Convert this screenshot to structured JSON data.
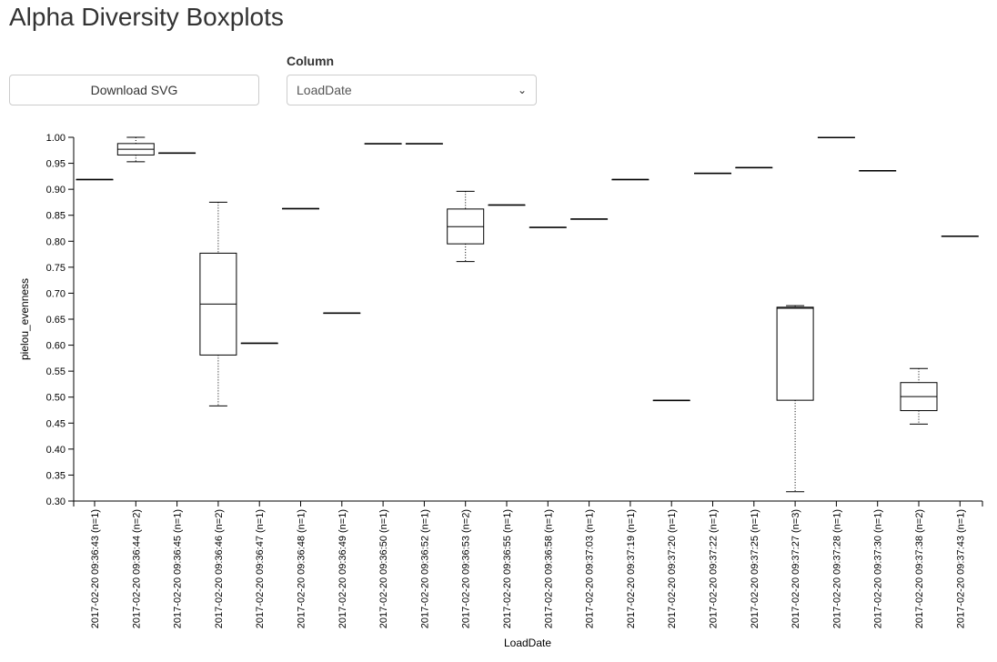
{
  "page": {
    "title": "Alpha Diversity Boxplots"
  },
  "controls": {
    "download_label": "Download SVG",
    "column_label": "Column",
    "column_selected": "LoadDate"
  },
  "chart_data": {
    "type": "boxplot",
    "xlabel": "LoadDate",
    "ylabel": "pielou_evenness",
    "ylim": [
      0.3,
      1.0
    ],
    "yticks": [
      0.3,
      0.35,
      0.4,
      0.45,
      0.5,
      0.55,
      0.6,
      0.65,
      0.7,
      0.75,
      0.8,
      0.85,
      0.9,
      0.95,
      1.0
    ],
    "categories": [
      {
        "label": "2017-02-20 09:36:43 (n=1)",
        "min": 0.919,
        "q1": 0.919,
        "median": 0.919,
        "q3": 0.919,
        "max": 0.919
      },
      {
        "label": "2017-02-20 09:36:44 (n=2)",
        "min": 0.953,
        "q1": 0.966,
        "median": 0.977,
        "q3": 0.988,
        "max": 1.0
      },
      {
        "label": "2017-02-20 09:36:45 (n=1)",
        "min": 0.97,
        "q1": 0.97,
        "median": 0.97,
        "q3": 0.97,
        "max": 0.97
      },
      {
        "label": "2017-02-20 09:36:46 (n=2)",
        "min": 0.483,
        "q1": 0.581,
        "median": 0.679,
        "q3": 0.777,
        "max": 0.875
      },
      {
        "label": "2017-02-20 09:36:47 (n=1)",
        "min": 0.604,
        "q1": 0.604,
        "median": 0.604,
        "q3": 0.604,
        "max": 0.604
      },
      {
        "label": "2017-02-20 09:36:48 (n=1)",
        "min": 0.863,
        "q1": 0.863,
        "median": 0.863,
        "q3": 0.863,
        "max": 0.863
      },
      {
        "label": "2017-02-20 09:36:49 (n=1)",
        "min": 0.662,
        "q1": 0.662,
        "median": 0.662,
        "q3": 0.662,
        "max": 0.662
      },
      {
        "label": "2017-02-20 09:36:50 (n=1)",
        "min": 0.988,
        "q1": 0.988,
        "median": 0.988,
        "q3": 0.988,
        "max": 0.988
      },
      {
        "label": "2017-02-20 09:36:52 (n=1)",
        "min": 0.988,
        "q1": 0.988,
        "median": 0.988,
        "q3": 0.988,
        "max": 0.988
      },
      {
        "label": "2017-02-20 09:36:53 (n=2)",
        "min": 0.761,
        "q1": 0.795,
        "median": 0.828,
        "q3": 0.862,
        "max": 0.896
      },
      {
        "label": "2017-02-20 09:36:55 (n=1)",
        "min": 0.87,
        "q1": 0.87,
        "median": 0.87,
        "q3": 0.87,
        "max": 0.87
      },
      {
        "label": "2017-02-20 09:36:58 (n=1)",
        "min": 0.827,
        "q1": 0.827,
        "median": 0.827,
        "q3": 0.827,
        "max": 0.827
      },
      {
        "label": "2017-02-20 09:37:03 (n=1)",
        "min": 0.843,
        "q1": 0.843,
        "median": 0.843,
        "q3": 0.843,
        "max": 0.843
      },
      {
        "label": "2017-02-20 09:37:19 (n=1)",
        "min": 0.919,
        "q1": 0.919,
        "median": 0.919,
        "q3": 0.919,
        "max": 0.919
      },
      {
        "label": "2017-02-20 09:37:20 (n=1)",
        "min": 0.494,
        "q1": 0.494,
        "median": 0.494,
        "q3": 0.494,
        "max": 0.494
      },
      {
        "label": "2017-02-20 09:37:22 (n=1)",
        "min": 0.931,
        "q1": 0.931,
        "median": 0.931,
        "q3": 0.931,
        "max": 0.931
      },
      {
        "label": "2017-02-20 09:37:25 (n=1)",
        "min": 0.942,
        "q1": 0.942,
        "median": 0.942,
        "q3": 0.942,
        "max": 0.942
      },
      {
        "label": "2017-02-20 09:37:27 (n=3)",
        "min": 0.318,
        "q1": 0.494,
        "median": 0.671,
        "q3": 0.673,
        "max": 0.676
      },
      {
        "label": "2017-02-20 09:37:28 (n=1)",
        "min": 1.0,
        "q1": 1.0,
        "median": 1.0,
        "q3": 1.0,
        "max": 1.0
      },
      {
        "label": "2017-02-20 09:37:30 (n=1)",
        "min": 0.936,
        "q1": 0.936,
        "median": 0.936,
        "q3": 0.936,
        "max": 0.936
      },
      {
        "label": "2017-02-20 09:37:38 (n=2)",
        "min": 0.448,
        "q1": 0.474,
        "median": 0.501,
        "q3": 0.528,
        "max": 0.555
      },
      {
        "label": "2017-02-20 09:37:43 (n=1)",
        "min": 0.81,
        "q1": 0.81,
        "median": 0.81,
        "q3": 0.81,
        "max": 0.81
      }
    ]
  }
}
